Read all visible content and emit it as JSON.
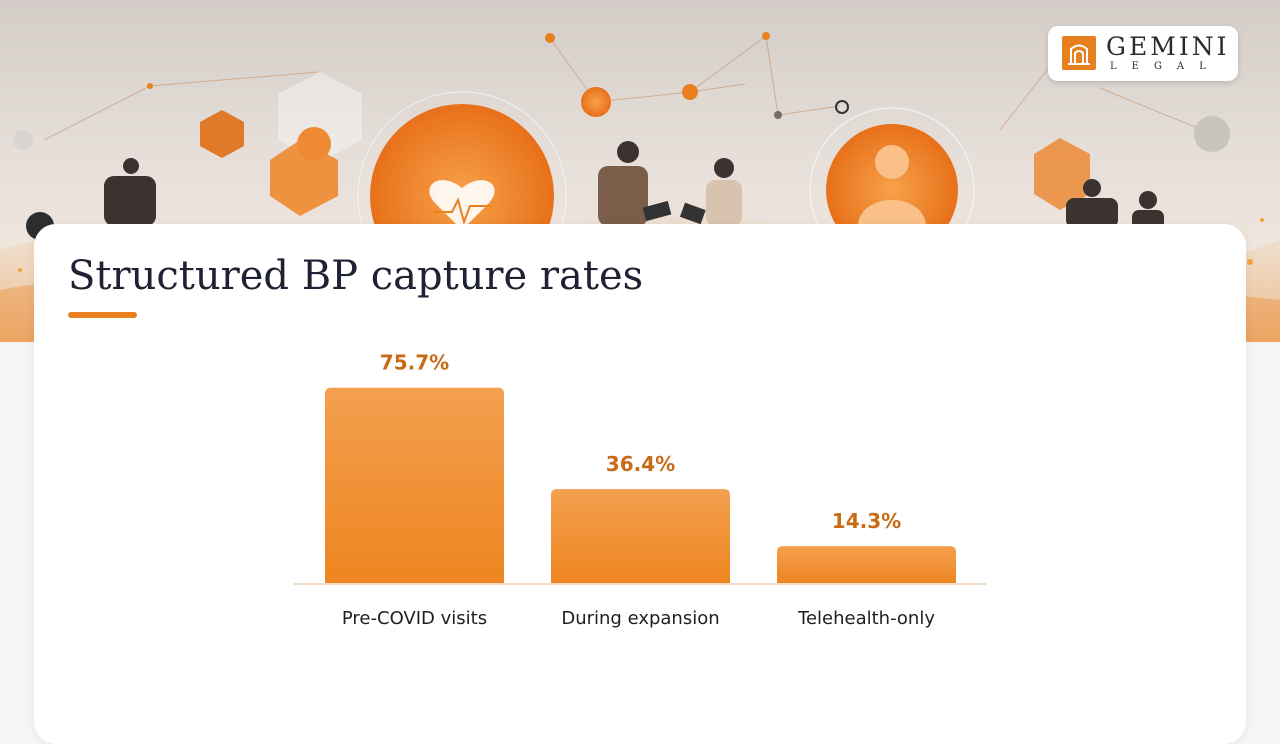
{
  "brand": {
    "name": "GEMINI",
    "sub": "LEGAL"
  },
  "slide": {
    "title": "Structured BP capture rates"
  },
  "colors": {
    "accent": "#e8801f",
    "bar_top": "#f3a04f",
    "bar_bottom": "#ee8520",
    "value_label": "#c96a15",
    "title": "#1f2235"
  },
  "chart_data": {
    "type": "bar",
    "title": "",
    "xlabel": "",
    "ylabel": "",
    "categories": [
      "Pre-COVID visits",
      "During expansion",
      "Telehealth-only"
    ],
    "values": [
      75.7,
      36.4,
      14.3
    ],
    "value_labels": [
      "75.7%",
      "36.4%",
      "14.3%"
    ],
    "unit": "%",
    "ylim": [
      0,
      100
    ],
    "grid": false,
    "legend": "none"
  }
}
